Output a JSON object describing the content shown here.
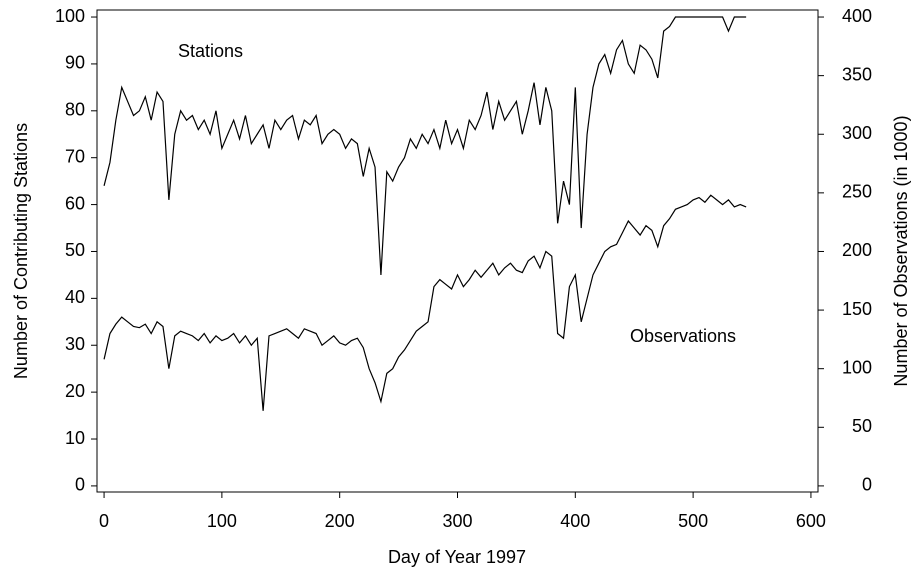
{
  "chart_data": {
    "type": "line",
    "x_label": "Day of Year 1997",
    "y_label": "Number of Contributing Stations",
    "y2_label": "Number of Observations (in 1000)",
    "annotations": [
      "Stations",
      "Observations"
    ],
    "x": [
      0,
      5,
      10,
      15,
      20,
      25,
      30,
      35,
      40,
      45,
      50,
      55,
      60,
      65,
      70,
      75,
      80,
      85,
      90,
      95,
      100,
      105,
      110,
      115,
      120,
      125,
      130,
      135,
      140,
      145,
      150,
      155,
      160,
      165,
      170,
      175,
      180,
      185,
      190,
      195,
      200,
      205,
      210,
      215,
      220,
      225,
      230,
      235,
      240,
      245,
      250,
      255,
      260,
      265,
      270,
      275,
      280,
      285,
      290,
      295,
      300,
      305,
      310,
      315,
      320,
      325,
      330,
      335,
      340,
      345,
      350,
      355,
      360,
      365,
      370,
      375,
      380,
      385,
      390,
      395,
      400,
      405,
      410,
      415,
      420,
      425,
      430,
      435,
      440,
      445,
      450,
      455,
      460,
      465,
      470,
      475,
      480,
      485,
      490,
      495,
      500,
      505,
      510,
      515,
      520,
      525,
      530,
      535,
      540,
      545
    ],
    "series": [
      {
        "name": "Stations",
        "color": "#000000",
        "values": [
          64,
          69,
          78,
          85,
          82,
          79,
          80,
          83,
          78,
          84,
          82,
          61,
          75,
          80,
          78,
          79,
          76,
          78,
          75,
          80,
          72,
          75,
          78,
          74,
          79,
          73,
          75,
          77,
          72,
          78,
          76,
          78,
          79,
          74,
          78,
          77,
          79,
          73,
          75,
          76,
          75,
          72,
          74,
          73,
          66,
          72,
          68,
          45,
          67,
          65,
          68,
          70,
          74,
          72,
          75,
          73,
          76,
          72,
          78,
          73,
          76,
          72,
          78,
          76,
          79,
          84,
          76,
          82,
          78,
          80,
          82,
          75,
          80,
          86,
          77,
          85,
          80,
          56,
          65,
          60,
          85,
          55,
          75,
          85,
          90,
          92,
          88,
          93,
          95,
          90,
          88,
          94,
          93,
          91,
          87,
          97,
          98,
          100,
          100,
          100,
          100,
          100,
          100,
          100,
          100,
          100,
          97,
          100,
          100,
          100
        ]
      },
      {
        "name": "Observations",
        "color": "#000000",
        "axis": "y2",
        "values": [
          108,
          130,
          138,
          144,
          140,
          136,
          135,
          138,
          130,
          140,
          136,
          100,
          128,
          132,
          130,
          128,
          124,
          130,
          122,
          128,
          124,
          126,
          130,
          122,
          128,
          120,
          126,
          64,
          128,
          130,
          132,
          134,
          130,
          126,
          134,
          132,
          130,
          120,
          124,
          128,
          122,
          120,
          124,
          126,
          118,
          100,
          88,
          72,
          96,
          100,
          110,
          116,
          124,
          132,
          136,
          140,
          170,
          176,
          172,
          168,
          180,
          170,
          176,
          184,
          178,
          184,
          190,
          180,
          186,
          190,
          184,
          182,
          192,
          196,
          186,
          200,
          196,
          130,
          126,
          170,
          180,
          140,
          160,
          180,
          190,
          200,
          204,
          206,
          216,
          226,
          220,
          214,
          222,
          218,
          204,
          222,
          228,
          236,
          238,
          240,
          244,
          246,
          242,
          248,
          244,
          240,
          244,
          238,
          240,
          238
        ]
      }
    ],
    "xlim": [
      -6,
      606
    ],
    "xticks": [
      0,
      100,
      200,
      300,
      400,
      500,
      600
    ],
    "ylim": [
      -1.3,
      101.5
    ],
    "yticks": [
      0,
      10,
      20,
      30,
      40,
      50,
      60,
      70,
      80,
      90,
      100
    ],
    "y2lim": [
      -5.2,
      406
    ],
    "y2ticks": [
      0,
      50,
      100,
      150,
      200,
      250,
      300,
      350,
      400
    ]
  }
}
